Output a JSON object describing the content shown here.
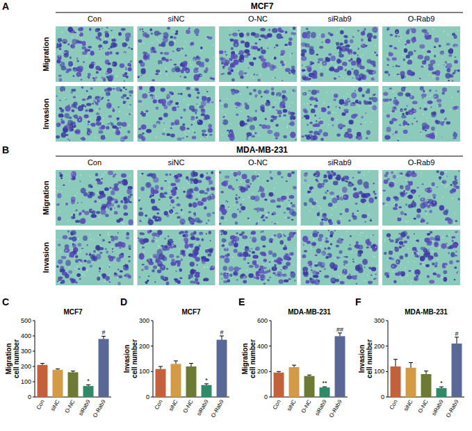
{
  "figure_panels": [
    {
      "panel": "A",
      "title": "MCF7",
      "columns": [
        "Con",
        "siNC",
        "O-NC",
        "siRab9",
        "O-Rab9"
      ],
      "rows": [
        "Migration",
        "Invasion"
      ]
    },
    {
      "panel": "B",
      "title": "MDA-MB-231",
      "columns": [
        "Con",
        "siNC",
        "O-NC",
        "siRab9",
        "O-Rab9"
      ],
      "rows": [
        "Migration",
        "Invasion"
      ]
    }
  ],
  "chart_data": [
    {
      "panel": "C",
      "type": "bar",
      "title": "MCF7",
      "ylabel": "Migration cell number",
      "categories": [
        "Con",
        "siNC",
        "O-NC",
        "siRab9",
        "O-Rab9"
      ],
      "values": [
        210,
        178,
        162,
        72,
        380
      ],
      "errors": [
        10,
        6,
        8,
        8,
        18
      ],
      "colors": [
        "#c4603a",
        "#d49a45",
        "#6c7a34",
        "#2f8a68",
        "#5a6898"
      ],
      "ylim": [
        0,
        500
      ],
      "yticks": [
        0,
        100,
        200,
        300,
        400,
        500
      ],
      "annotations": [
        {
          "category": "siRab9",
          "text": "*"
        },
        {
          "category": "O-Rab9",
          "text": "#"
        }
      ]
    },
    {
      "panel": "D",
      "type": "bar",
      "title": "MCF7",
      "ylabel": "Invasion cell number",
      "categories": [
        "Con",
        "siNC",
        "O-NC",
        "siRab9",
        "O-Rab9"
      ],
      "values": [
        110,
        130,
        120,
        47,
        225
      ],
      "errors": [
        10,
        12,
        12,
        5,
        15
      ],
      "colors": [
        "#c4603a",
        "#d49a45",
        "#6c7a34",
        "#2f8a68",
        "#5a6898"
      ],
      "ylim": [
        0,
        300
      ],
      "yticks": [
        0,
        100,
        200,
        300
      ],
      "annotations": [
        {
          "category": "siRab9",
          "text": "*"
        },
        {
          "category": "O-Rab9",
          "text": "#"
        }
      ]
    },
    {
      "panel": "E",
      "type": "bar",
      "title": "MDA-MB-231",
      "ylabel": "Migration cell number",
      "categories": [
        "Con",
        "siNC",
        "O-NC",
        "siRab9",
        "O-Rab9"
      ],
      "values": [
        192,
        235,
        165,
        75,
        478
      ],
      "errors": [
        8,
        15,
        8,
        5,
        25
      ],
      "colors": [
        "#c4603a",
        "#d49a45",
        "#6c7a34",
        "#2f8a68",
        "#5a6898"
      ],
      "ylim": [
        0,
        600
      ],
      "yticks": [
        0,
        200,
        400,
        600
      ],
      "annotations": [
        {
          "category": "siRab9",
          "text": "**"
        },
        {
          "category": "O-Rab9",
          "text": "##"
        }
      ]
    },
    {
      "panel": "F",
      "type": "bar",
      "title": "MDA-MB-231",
      "ylabel": "Invasion cell number",
      "categories": [
        "Con",
        "siNC",
        "O-NC",
        "siRab9",
        "O-Rab9"
      ],
      "values": [
        120,
        115,
        90,
        35,
        210
      ],
      "errors": [
        28,
        20,
        12,
        5,
        25
      ],
      "colors": [
        "#c4603a",
        "#d49a45",
        "#6c7a34",
        "#2f8a68",
        "#5a6898"
      ],
      "ylim": [
        0,
        300
      ],
      "yticks": [
        0,
        100,
        200,
        300
      ],
      "annotations": [
        {
          "category": "siRab9",
          "text": "*"
        },
        {
          "category": "O-Rab9",
          "text": "#"
        }
      ]
    }
  ]
}
